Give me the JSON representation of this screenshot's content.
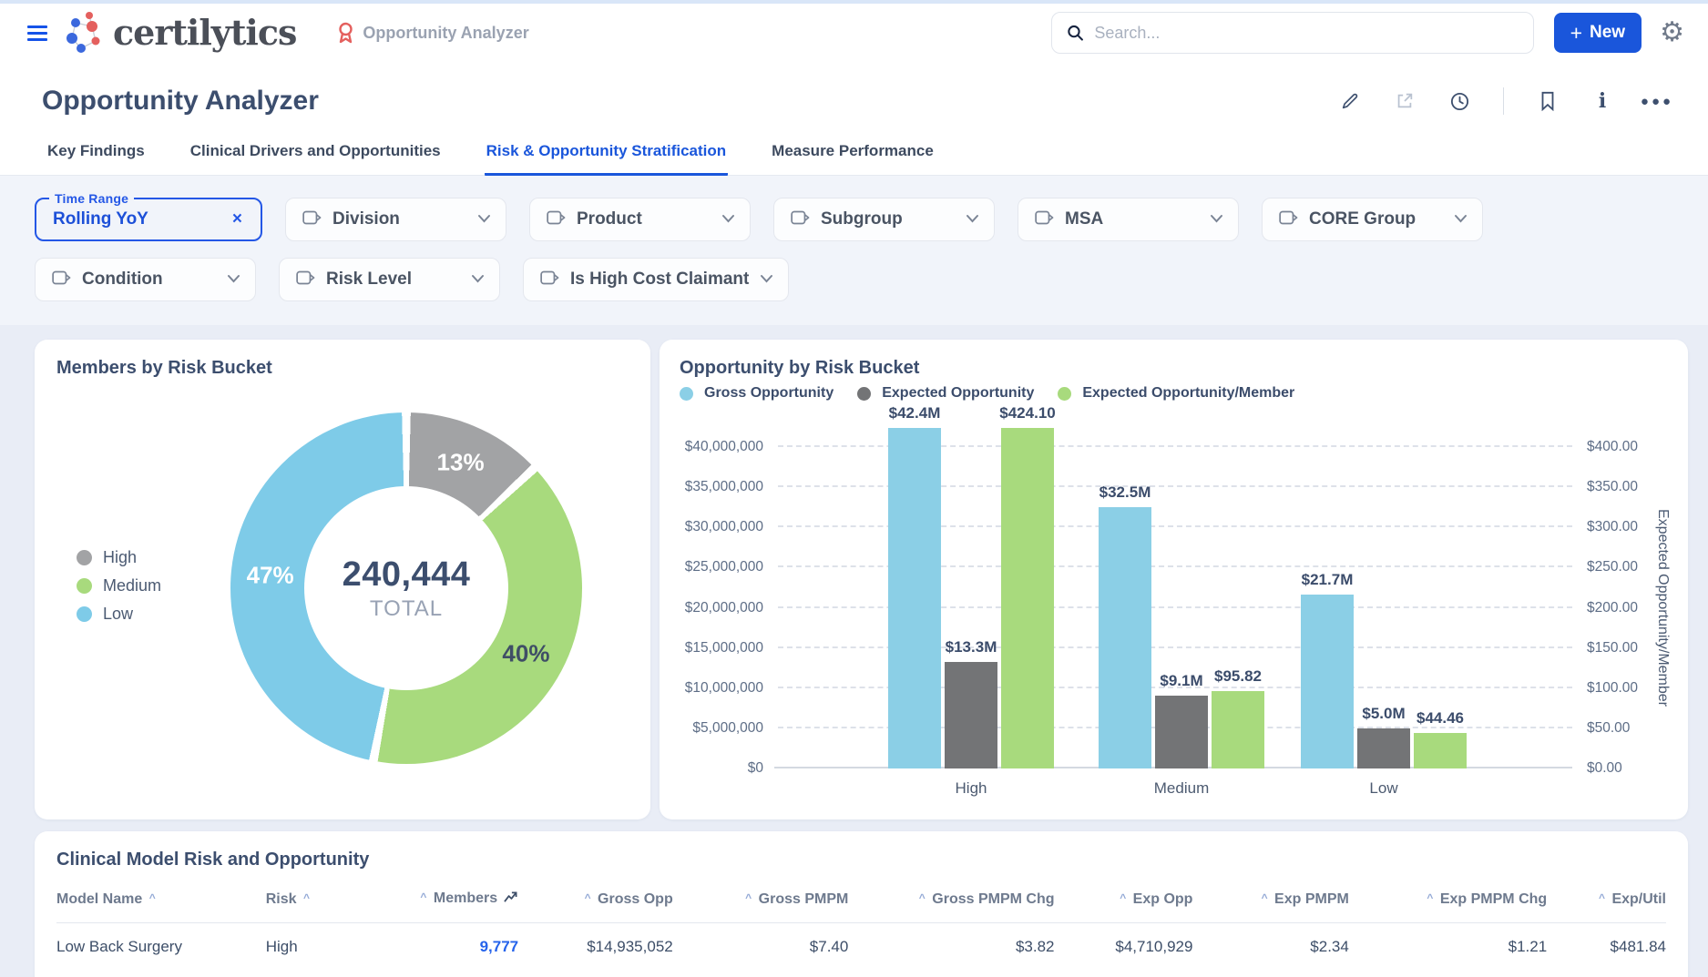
{
  "header": {
    "logo_text": "certilytics",
    "app_label": "Opportunity Analyzer",
    "search_placeholder": "Search...",
    "new_button_label": "New",
    "new_button_plus": "+",
    "accent_color": "#1a56db"
  },
  "title_bar": {
    "title": "Opportunity Analyzer"
  },
  "tabs": [
    {
      "label": "Key Findings",
      "active": false
    },
    {
      "label": "Clinical Drivers and Opportunities",
      "active": false
    },
    {
      "label": "Risk & Opportunity Stratification",
      "active": true
    },
    {
      "label": "Measure Performance",
      "active": false
    }
  ],
  "filters": {
    "time_range": {
      "label": "Time Range",
      "value": "Rolling YoY",
      "clear": "×"
    },
    "row1": [
      "Division",
      "Product",
      "Subgroup",
      "MSA",
      "CORE Group"
    ],
    "row2": [
      "Condition",
      "Risk Level",
      "Is High Cost Claimant"
    ]
  },
  "chart_data": [
    {
      "type": "pie",
      "title": "Members by Risk Bucket",
      "center_value": "240,444",
      "center_label": "TOTAL",
      "segments": [
        {
          "name": "High",
          "percent": 13,
          "color": "#a2a3a5",
          "label": "13%",
          "label_color": "#ffffff"
        },
        {
          "name": "Medium",
          "percent": 40,
          "color": "#a8da7d",
          "label": "40%",
          "label_color": "#3f4e66"
        },
        {
          "name": "Low",
          "percent": 47,
          "color": "#7ecbe8",
          "label": "47%",
          "label_color": "#ffffff"
        }
      ],
      "legend_position": "left"
    },
    {
      "type": "bar",
      "title": "Opportunity by Risk Bucket",
      "categories": [
        "High",
        "Medium",
        "Low"
      ],
      "series": [
        {
          "name": "Gross Opportunity",
          "axis": "left",
          "color": "#8bcfe6",
          "values": [
            42400000,
            32500000,
            21700000
          ],
          "labels": [
            "$42.4M",
            "$32.5M",
            "$21.7M"
          ]
        },
        {
          "name": "Expected Opportunity",
          "axis": "left",
          "color": "#737476",
          "values": [
            13300000,
            9100000,
            5000000
          ],
          "labels": [
            "$13.3M",
            "$9.1M",
            "$5.0M"
          ]
        },
        {
          "name": "Expected Opportunity/Member",
          "axis": "right",
          "color": "#a8da7d",
          "values": [
            424.1,
            95.82,
            44.46
          ],
          "labels": [
            "$424.10",
            "$95.82",
            "$44.46"
          ]
        }
      ],
      "left_axis": {
        "min": 0,
        "max": 40000000,
        "step": 5000000,
        "tick_labels": [
          "$0",
          "$5,000,000",
          "$10,000,000",
          "$15,000,000",
          "$20,000,000",
          "$25,000,000",
          "$30,000,000",
          "$35,000,000",
          "$40,000,000"
        ]
      },
      "right_axis": {
        "min": 0,
        "max": 400,
        "step": 50,
        "title": "Expected Opportunity/Member",
        "tick_labels": [
          "$0.00",
          "$50.00",
          "$100.00",
          "$150.00",
          "$200.00",
          "$250.00",
          "$300.00",
          "$350.00",
          "$400.00"
        ]
      },
      "grid": "dashed-horizontal",
      "legend_position": "top-left"
    }
  ],
  "table": {
    "title": "Clinical Model Risk and Opportunity",
    "columns": [
      {
        "label": "Model Name",
        "align": "left",
        "caret": "after",
        "width": "13%"
      },
      {
        "label": "Risk",
        "align": "left",
        "caret": "after",
        "width": "7.3%"
      },
      {
        "label": "Members",
        "align": "right",
        "caret": "before",
        "width": "8.4%",
        "trend_icon": true
      },
      {
        "label": "Gross Opp",
        "align": "right",
        "caret": "before",
        "width": "9.6%"
      },
      {
        "label": "Gross PMPM",
        "align": "right",
        "caret": "before",
        "width": "10.9%"
      },
      {
        "label": "Gross PMPM Chg",
        "align": "right",
        "caret": "before",
        "width": "12.8%"
      },
      {
        "label": "Exp Opp",
        "align": "right",
        "caret": "before",
        "width": "8.6%"
      },
      {
        "label": "Exp PMPM",
        "align": "right",
        "caret": "before",
        "width": "9.7%"
      },
      {
        "label": "Exp PMPM Chg",
        "align": "right",
        "caret": "before",
        "width": "12.3%"
      },
      {
        "label": "Exp/Util",
        "align": "right",
        "caret": "before",
        "width": "7.4%"
      }
    ],
    "rows": [
      [
        "Low Back Surgery",
        "High",
        "9,777",
        "$14,935,052",
        "$7.40",
        "$3.82",
        "$4,710,929",
        "$2.34",
        "$1.21",
        "$481.84"
      ]
    ],
    "link_column_index": 2
  }
}
